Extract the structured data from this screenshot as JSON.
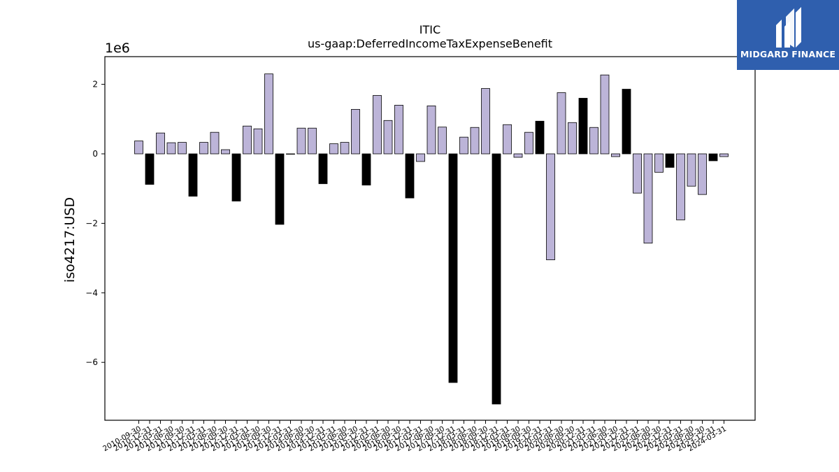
{
  "logo": {
    "text": "MIDGARD FINANCE",
    "color": "#2f5fae"
  },
  "chart_data": {
    "type": "bar",
    "title": "ITIC",
    "subtitle": "us-gaap:DeferredIncomeTaxExpenseBenefit",
    "ylabel": "iso4217:USD",
    "xlabel": "",
    "scale_label": "1e6",
    "ylim": [
      -7.7,
      2.8
    ],
    "yticks": [
      -6,
      -4,
      -2,
      0,
      2
    ],
    "grid": false,
    "colors": {
      "positive": "#bcb4d8",
      "negative": "#000000",
      "edge": "#000000"
    },
    "categories": [
      "2010-09-30",
      "2010-12-31",
      "2011-03-31",
      "2011-06-30",
      "2011-09-30",
      "2011-12-31",
      "2012-03-31",
      "2012-06-30",
      "2012-09-30",
      "2012-12-31",
      "2013-03-31",
      "2013-06-30",
      "2013-09-30",
      "2013-12-31",
      "2014-03-31",
      "2014-06-30",
      "2014-09-30",
      "2014-12-31",
      "2015-03-31",
      "2015-06-30",
      "2015-09-30",
      "2015-12-31",
      "2016-03-31",
      "2016-06-30",
      "2016-09-30",
      "2016-12-31",
      "2017-03-31",
      "2017-06-30",
      "2017-09-30",
      "2017-12-31",
      "2018-03-31",
      "2018-06-30",
      "2018-09-30",
      "2018-12-31",
      "2019-03-31",
      "2019-06-30",
      "2019-09-30",
      "2019-12-31",
      "2020-03-31",
      "2020-06-30",
      "2020-09-30",
      "2020-12-31",
      "2021-03-31",
      "2021-06-30",
      "2021-09-30",
      "2021-12-31",
      "2022-03-31",
      "2022-06-30",
      "2022-09-30",
      "2022-12-31",
      "2023-03-31",
      "2023-06-30",
      "2023-09-30",
      "2023-12-31",
      "2024-03-31"
    ],
    "values": [
      0.37,
      -0.88,
      0.6,
      0.32,
      0.33,
      -1.22,
      0.33,
      0.62,
      0.12,
      -1.36,
      0.8,
      0.72,
      2.3,
      -2.03,
      0.0,
      0.74,
      0.74,
      -0.86,
      0.29,
      0.33,
      1.28,
      -0.9,
      1.68,
      0.96,
      1.4,
      -1.27,
      -0.22,
      1.38,
      0.77,
      -6.58,
      0.48,
      0.76,
      1.88,
      -7.2,
      0.84,
      -0.1,
      0.62,
      0.94,
      -3.05,
      1.76,
      0.9,
      1.6,
      0.76,
      2.27,
      -0.08,
      1.86,
      -1.13,
      -2.57,
      -0.53,
      -0.39,
      -1.9,
      -0.93,
      -1.17,
      -0.2,
      -0.08
    ],
    "bar_fill": [
      "positive",
      "negative",
      "positive",
      "positive",
      "positive",
      "negative",
      "positive",
      "positive",
      "positive",
      "negative",
      "positive",
      "positive",
      "positive",
      "negative",
      "positive",
      "positive",
      "positive",
      "negative",
      "positive",
      "positive",
      "positive",
      "negative",
      "positive",
      "positive",
      "positive",
      "negative",
      "positive",
      "positive",
      "positive",
      "negative",
      "positive",
      "positive",
      "positive",
      "negative",
      "positive",
      "positive",
      "positive",
      "negative",
      "positive",
      "positive",
      "positive",
      "negative",
      "positive",
      "positive",
      "positive",
      "negative",
      "positive",
      "positive",
      "positive",
      "negative",
      "positive",
      "positive",
      "positive",
      "negative",
      "positive"
    ]
  }
}
